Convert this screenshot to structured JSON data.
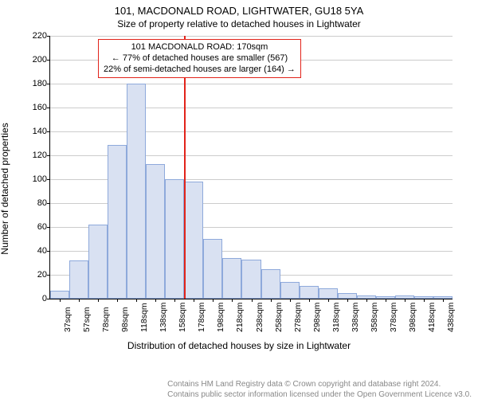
{
  "titles": {
    "main": "101, MACDONALD ROAD, LIGHTWATER, GU18 5YA",
    "sub": "Size of property relative to detached houses in Lightwater"
  },
  "yaxis": {
    "label": "Number of detached properties",
    "ticks": [
      0,
      20,
      40,
      60,
      80,
      100,
      120,
      140,
      160,
      180,
      200,
      220
    ],
    "max": 220
  },
  "xaxis": {
    "label": "Distribution of detached houses by size in Lightwater",
    "ticks": [
      "37sqm",
      "57sqm",
      "78sqm",
      "98sqm",
      "118sqm",
      "138sqm",
      "158sqm",
      "178sqm",
      "198sqm",
      "218sqm",
      "238sqm",
      "258sqm",
      "278sqm",
      "298sqm",
      "318sqm",
      "338sqm",
      "358sqm",
      "378sqm",
      "398sqm",
      "418sqm",
      "438sqm"
    ]
  },
  "bars": {
    "values": [
      7,
      32,
      62,
      129,
      180,
      113,
      100,
      98,
      50,
      34,
      33,
      25,
      14,
      11,
      9,
      5,
      3,
      2,
      3,
      2,
      2
    ],
    "fill_color": "#d9e1f2",
    "border_color": "#8ea9db"
  },
  "reference": {
    "index": 7,
    "color": "#e2231a"
  },
  "callout": {
    "line1": "101 MACDONALD ROAD: 170sqm",
    "line2": "← 77% of detached houses are smaller (567)",
    "line3": "22% of semi-detached houses are larger (164) →"
  },
  "footer": {
    "line1": "Contains HM Land Registry data © Crown copyright and database right 2024.",
    "line2": "Contains public sector information licensed under the Open Government Licence v3.0."
  },
  "style": {
    "grid_color": "#cccccc",
    "axis_color": "#000000",
    "background": "#ffffff",
    "footer_color": "#888888",
    "title_fontsize": 13,
    "sub_fontsize": 12,
    "axislabel_fontsize": 12,
    "tick_fontsize": 11,
    "callout_fontsize": 11
  }
}
